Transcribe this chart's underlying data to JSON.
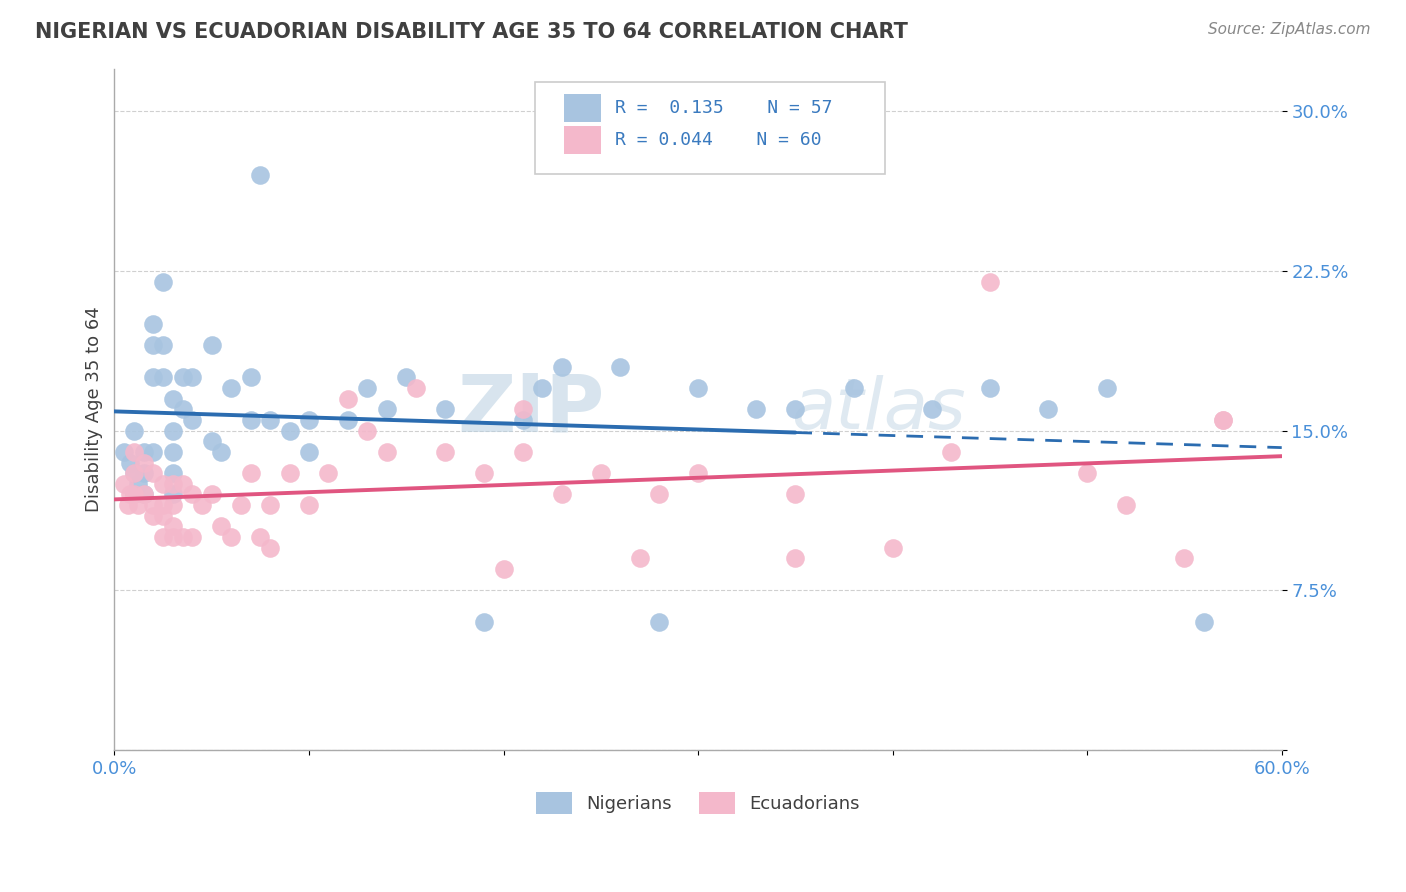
{
  "title": "NIGERIAN VS ECUADORIAN DISABILITY AGE 35 TO 64 CORRELATION CHART",
  "source_text": "Source: ZipAtlas.com",
  "ylabel": "Disability Age 35 to 64",
  "xlim": [
    0.0,
    0.6
  ],
  "ylim": [
    0.0,
    0.32
  ],
  "ytick_vals": [
    0.0,
    0.075,
    0.15,
    0.225,
    0.3
  ],
  "ytick_labels": [
    "",
    "7.5%",
    "15.0%",
    "22.5%",
    "30.0%"
  ],
  "xtick_vals": [
    0.0,
    0.1,
    0.2,
    0.3,
    0.4,
    0.5,
    0.6
  ],
  "xtick_labels": [
    "0.0%",
    "",
    "",
    "",
    "",
    "",
    "60.0%"
  ],
  "nigerian_color": "#a8c4e0",
  "ecuadorian_color": "#f4b8cb",
  "trend_nigerian_color": "#2b6cb0",
  "trend_ecuadorian_color": "#e05580",
  "background_color": "#ffffff",
  "grid_color": "#d0d0d0",
  "title_color": "#404040",
  "watermark_color": "#c8d8ea",
  "nigerian_x": [
    0.005,
    0.008,
    0.01,
    0.01,
    0.01,
    0.012,
    0.015,
    0.015,
    0.015,
    0.02,
    0.02,
    0.02,
    0.02,
    0.025,
    0.025,
    0.025,
    0.03,
    0.03,
    0.03,
    0.03,
    0.03,
    0.035,
    0.035,
    0.04,
    0.04,
    0.05,
    0.05,
    0.055,
    0.06,
    0.07,
    0.07,
    0.075,
    0.08,
    0.09,
    0.1,
    0.1,
    0.12,
    0.13,
    0.14,
    0.15,
    0.17,
    0.19,
    0.21,
    0.22,
    0.23,
    0.26,
    0.28,
    0.3,
    0.33,
    0.35,
    0.38,
    0.42,
    0.45,
    0.48,
    0.51,
    0.56
  ],
  "nigerian_y": [
    0.14,
    0.135,
    0.15,
    0.13,
    0.12,
    0.125,
    0.14,
    0.13,
    0.12,
    0.2,
    0.19,
    0.175,
    0.14,
    0.22,
    0.19,
    0.175,
    0.165,
    0.15,
    0.14,
    0.13,
    0.12,
    0.175,
    0.16,
    0.175,
    0.155,
    0.19,
    0.145,
    0.14,
    0.17,
    0.175,
    0.155,
    0.27,
    0.155,
    0.15,
    0.155,
    0.14,
    0.155,
    0.17,
    0.16,
    0.175,
    0.16,
    0.06,
    0.155,
    0.17,
    0.18,
    0.18,
    0.06,
    0.17,
    0.16,
    0.16,
    0.17,
    0.16,
    0.17,
    0.16,
    0.17,
    0.06
  ],
  "ecuadorian_x": [
    0.005,
    0.007,
    0.008,
    0.01,
    0.01,
    0.01,
    0.012,
    0.015,
    0.015,
    0.02,
    0.02,
    0.02,
    0.025,
    0.025,
    0.025,
    0.025,
    0.03,
    0.03,
    0.03,
    0.03,
    0.035,
    0.035,
    0.04,
    0.04,
    0.045,
    0.05,
    0.055,
    0.06,
    0.065,
    0.07,
    0.075,
    0.08,
    0.09,
    0.1,
    0.11,
    0.12,
    0.13,
    0.14,
    0.155,
    0.17,
    0.19,
    0.21,
    0.23,
    0.25,
    0.28,
    0.3,
    0.35,
    0.4,
    0.43,
    0.45,
    0.5,
    0.52,
    0.55,
    0.57,
    0.21,
    0.27,
    0.35,
    0.2,
    0.08,
    0.57
  ],
  "ecuadorian_y": [
    0.125,
    0.115,
    0.12,
    0.14,
    0.13,
    0.12,
    0.115,
    0.135,
    0.12,
    0.13,
    0.115,
    0.11,
    0.125,
    0.115,
    0.11,
    0.1,
    0.125,
    0.115,
    0.105,
    0.1,
    0.125,
    0.1,
    0.12,
    0.1,
    0.115,
    0.12,
    0.105,
    0.1,
    0.115,
    0.13,
    0.1,
    0.115,
    0.13,
    0.115,
    0.13,
    0.165,
    0.15,
    0.14,
    0.17,
    0.14,
    0.13,
    0.14,
    0.12,
    0.13,
    0.12,
    0.13,
    0.12,
    0.095,
    0.14,
    0.22,
    0.13,
    0.115,
    0.09,
    0.155,
    0.16,
    0.09,
    0.09,
    0.085,
    0.095,
    0.155
  ]
}
